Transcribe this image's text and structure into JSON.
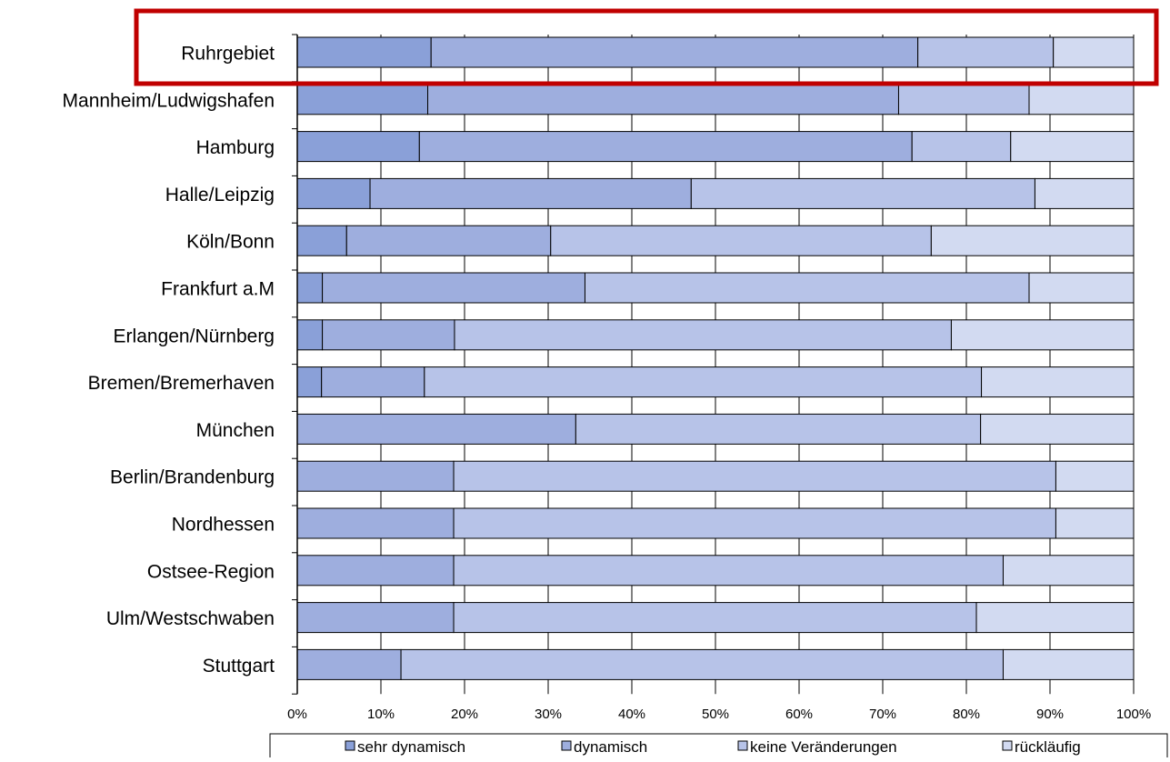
{
  "chart_data": {
    "type": "bar",
    "orientation": "horizontal",
    "stacked": "percent",
    "categories": [
      "Ruhrgebiet",
      "Mannheim/Ludwigshafen",
      "Hamburg",
      "Halle/Leipzig",
      "Köln/Bonn",
      "Frankfurt a.M",
      "Erlangen/Nürnberg",
      "Bremen/Bremerhaven",
      "München",
      "Berlin/Brandenburg",
      "Nordhessen",
      "Ostsee-Region",
      "Ulm/Westschwaben",
      "Stuttgart"
    ],
    "series": [
      {
        "name": "sehr dynamisch",
        "color": "#8aa0d8",
        "values": [
          16,
          15.6,
          14.6,
          8.7,
          5.9,
          3,
          3,
          2.9,
          0,
          0,
          0,
          0,
          0,
          0
        ]
      },
      {
        "name": "dynamisch",
        "color": "#9eaede",
        "values": [
          58.2,
          56.3,
          58.9,
          38.4,
          24.4,
          31.4,
          15.8,
          12.3,
          33.3,
          18.7,
          18.7,
          18.7,
          18.7,
          12.4
        ]
      },
      {
        "name": "keine Veränderungen",
        "color": "#b7c3e8",
        "values": [
          16.2,
          15.6,
          11.8,
          41.1,
          45.5,
          53.1,
          59.4,
          66.6,
          48.4,
          72.0,
          72.0,
          65.7,
          62.5,
          72.0
        ]
      },
      {
        "name": "rückläufig",
        "color": "#d2daf1",
        "values": [
          9.6,
          12.5,
          14.7,
          11.8,
          24.2,
          12.5,
          21.8,
          18.2,
          18.3,
          9.3,
          9.3,
          15.6,
          18.8,
          15.6
        ]
      }
    ],
    "xlim": [
      0,
      100
    ],
    "xticks": [
      "0%",
      "10%",
      "20%",
      "30%",
      "40%",
      "50%",
      "60%",
      "70%",
      "80%",
      "90%",
      "100%"
    ],
    "grid": "vertical",
    "legend_position": "bottom",
    "highlight": {
      "category": "Ruhrgebiet",
      "color": "#c00000"
    }
  }
}
